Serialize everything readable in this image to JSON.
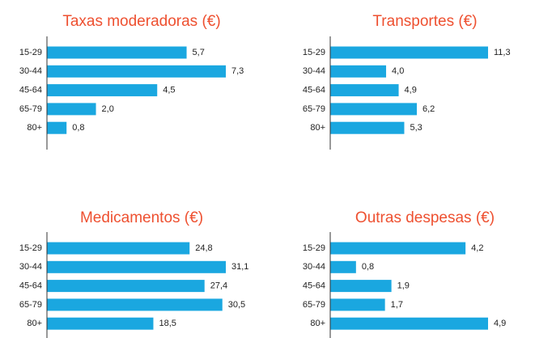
{
  "chart_data": [
    {
      "type": "bar",
      "orientation": "horizontal",
      "title": "Taxas moderadoras (€)",
      "color": "#1aa7e0",
      "categories": [
        "15-29",
        "30-44",
        "45-64",
        "65-79",
        "80+"
      ],
      "values": [
        5.7,
        7.3,
        4.5,
        2.0,
        0.8
      ],
      "value_labels": [
        "5,7",
        "7,3",
        "4,5",
        "2,0",
        "0,8"
      ]
    },
    {
      "type": "bar",
      "orientation": "horizontal",
      "title": "Transportes (€)",
      "color": "#1aa7e0",
      "categories": [
        "15-29",
        "30-44",
        "45-64",
        "65-79",
        "80+"
      ],
      "values": [
        11.3,
        4.0,
        4.9,
        6.2,
        5.3
      ],
      "value_labels": [
        "11,3",
        "4,0",
        "4,9",
        "6,2",
        "5,3"
      ]
    },
    {
      "type": "bar",
      "orientation": "horizontal",
      "title": "Medicamentos (€)",
      "color": "#1aa7e0",
      "categories": [
        "15-29",
        "30-44",
        "45-64",
        "65-79",
        "80+"
      ],
      "values": [
        24.8,
        31.1,
        27.4,
        30.5,
        18.5
      ],
      "value_labels": [
        "24,8",
        "31,1",
        "27,4",
        "30,5",
        "18,5"
      ]
    },
    {
      "type": "bar",
      "orientation": "horizontal",
      "title": "Outras despesas (€)",
      "color": "#1aa7e0",
      "categories": [
        "15-29",
        "30-44",
        "45-64",
        "65-79",
        "80+"
      ],
      "values": [
        4.2,
        0.8,
        1.9,
        1.7,
        4.9
      ],
      "value_labels": [
        "4,2",
        "0,8",
        "1,9",
        "1,7",
        "4,9"
      ]
    }
  ]
}
